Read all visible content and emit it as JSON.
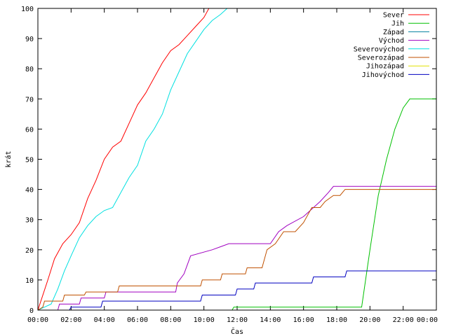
{
  "chart_data": {
    "type": "line",
    "xlabel": "Čas",
    "ylabel": "krát",
    "ylim": [
      0,
      100
    ],
    "y_ticks": [
      "0",
      "10",
      "20",
      "30",
      "40",
      "50",
      "60",
      "70",
      "80",
      "90",
      "100"
    ],
    "x_ticks": [
      "00:00",
      "02:00",
      "04:00",
      "06:00",
      "08:00",
      "10:00",
      "12:00",
      "14:00",
      "16:00",
      "18:00",
      "20:00",
      "22:00",
      "00:00"
    ],
    "xlim_hours": [
      0,
      24
    ],
    "grid": false,
    "legend_position": "top-right",
    "series": [
      {
        "name": "Sever",
        "color": "#ff0000",
        "points": [
          [
            0,
            0
          ],
          [
            0.3,
            5
          ],
          [
            0.6,
            10
          ],
          [
            1.0,
            17
          ],
          [
            1.5,
            22
          ],
          [
            2.0,
            25
          ],
          [
            2.5,
            29
          ],
          [
            3.0,
            37
          ],
          [
            3.5,
            43
          ],
          [
            4.0,
            50
          ],
          [
            4.5,
            54
          ],
          [
            5.0,
            56
          ],
          [
            5.5,
            62
          ],
          [
            6.0,
            68
          ],
          [
            6.5,
            72
          ],
          [
            7.0,
            77
          ],
          [
            7.5,
            82
          ],
          [
            8.0,
            86
          ],
          [
            8.5,
            88
          ],
          [
            9.0,
            91
          ],
          [
            9.5,
            94
          ],
          [
            10.0,
            97
          ],
          [
            10.3,
            100
          ]
        ]
      },
      {
        "name": "Jih",
        "color": "#00c000",
        "points": [
          [
            0,
            0
          ],
          [
            11.7,
            0
          ],
          [
            11.8,
            1
          ],
          [
            19.5,
            1
          ],
          [
            20.0,
            20
          ],
          [
            20.5,
            38
          ],
          [
            21.0,
            50
          ],
          [
            21.5,
            60
          ],
          [
            22.0,
            67
          ],
          [
            22.4,
            70
          ],
          [
            24.0,
            70
          ]
        ]
      },
      {
        "name": "Západ",
        "color": "#0080a0",
        "points": []
      },
      {
        "name": "Východ",
        "color": "#a000c0",
        "points": [
          [
            0,
            0
          ],
          [
            1.2,
            0
          ],
          [
            1.3,
            2
          ],
          [
            2.5,
            2
          ],
          [
            2.6,
            4
          ],
          [
            4.0,
            4
          ],
          [
            4.1,
            6
          ],
          [
            8.3,
            6
          ],
          [
            8.4,
            9
          ],
          [
            8.8,
            12
          ],
          [
            9.2,
            18
          ],
          [
            10.5,
            20
          ],
          [
            11.0,
            21
          ],
          [
            11.5,
            22
          ],
          [
            14.0,
            22
          ],
          [
            14.5,
            26
          ],
          [
            15.0,
            28
          ],
          [
            16.0,
            31
          ],
          [
            17.0,
            36
          ],
          [
            17.5,
            39
          ],
          [
            17.8,
            41
          ],
          [
            24.0,
            41
          ]
        ]
      },
      {
        "name": "Severovýchod",
        "color": "#00e0e0",
        "points": [
          [
            0,
            0
          ],
          [
            0.8,
            2
          ],
          [
            1.2,
            7
          ],
          [
            1.6,
            13
          ],
          [
            2.0,
            18
          ],
          [
            2.5,
            24
          ],
          [
            3.0,
            28
          ],
          [
            3.5,
            31
          ],
          [
            4.0,
            33
          ],
          [
            4.5,
            34
          ],
          [
            5.0,
            39
          ],
          [
            5.5,
            44
          ],
          [
            6.0,
            48
          ],
          [
            6.5,
            56
          ],
          [
            7.0,
            60
          ],
          [
            7.5,
            65
          ],
          [
            8.0,
            73
          ],
          [
            8.5,
            79
          ],
          [
            9.0,
            85
          ],
          [
            9.5,
            89
          ],
          [
            10.0,
            93
          ],
          [
            10.5,
            96
          ],
          [
            11.0,
            98
          ],
          [
            11.4,
            100
          ]
        ]
      },
      {
        "name": "Severozápad",
        "color": "#c05000",
        "points": [
          [
            0,
            0
          ],
          [
            0.3,
            1
          ],
          [
            0.4,
            3
          ],
          [
            1.5,
            3
          ],
          [
            1.6,
            5
          ],
          [
            2.8,
            5
          ],
          [
            2.9,
            6
          ],
          [
            4.8,
            6
          ],
          [
            4.9,
            8
          ],
          [
            9.8,
            8
          ],
          [
            9.9,
            10
          ],
          [
            11.0,
            10
          ],
          [
            11.1,
            12
          ],
          [
            12.5,
            12
          ],
          [
            12.6,
            14
          ],
          [
            13.5,
            14
          ],
          [
            13.8,
            20
          ],
          [
            14.3,
            22
          ],
          [
            14.8,
            26
          ],
          [
            15.5,
            26
          ],
          [
            16.0,
            29
          ],
          [
            16.5,
            34
          ],
          [
            17.0,
            34
          ],
          [
            17.3,
            36
          ],
          [
            17.8,
            38
          ],
          [
            18.2,
            38
          ],
          [
            18.5,
            40
          ],
          [
            24.0,
            40
          ]
        ]
      },
      {
        "name": "Jihozápad",
        "color": "#e0e000",
        "points": []
      },
      {
        "name": "Jihovýchod",
        "color": "#0000c0",
        "points": [
          [
            0,
            0
          ],
          [
            1.9,
            0
          ],
          [
            2.0,
            1
          ],
          [
            3.8,
            1
          ],
          [
            3.9,
            3
          ],
          [
            9.8,
            3
          ],
          [
            9.9,
            5
          ],
          [
            11.9,
            5
          ],
          [
            12.0,
            7
          ],
          [
            13.0,
            7
          ],
          [
            13.1,
            9
          ],
          [
            16.5,
            9
          ],
          [
            16.6,
            11
          ],
          [
            18.5,
            11
          ],
          [
            18.6,
            13
          ],
          [
            24.0,
            13
          ]
        ]
      }
    ]
  }
}
